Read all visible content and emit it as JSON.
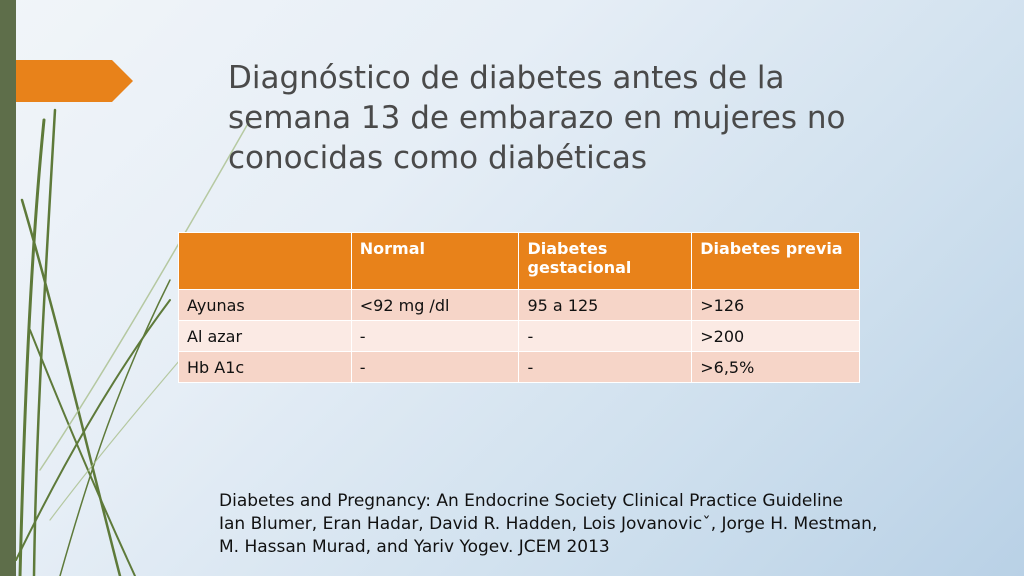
{
  "title": {
    "lines": [
      "Diagnóstico de diabetes antes de la",
      "semana 13 de embarazo en mujeres no",
      "conocidas como diabéticas"
    ]
  },
  "table": {
    "headers": [
      "",
      "Normal",
      "Diabetes gestacional",
      "Diabetes previa"
    ],
    "rows": [
      [
        "Ayunas",
        "<92 mg /dl",
        "95 a 125",
        ">126"
      ],
      [
        "Al azar",
        "-",
        "-",
        ">200"
      ],
      [
        "Hb A1c",
        "-",
        "-",
        ">6,5%"
      ]
    ]
  },
  "citation": {
    "lines": [
      "Diabetes and Pregnancy: An Endocrine Society Clinical Practice Guideline",
      "Ian Blumer, Eran Hadar, David R. Hadden, Lois Jovanovicˇ, Jorge H. Mestman,",
      "M. Hassan Murad, and Yariv Yogev. JCEM 2013"
    ]
  },
  "colors": {
    "header_bg": "#e8821a",
    "row_odd_bg": "#f6d5c8",
    "row_even_bg": "#fbeae4",
    "side_bar": "#5e6e4a",
    "accent_arrow": "#e8821a",
    "title_text": "#4a4a4a"
  }
}
